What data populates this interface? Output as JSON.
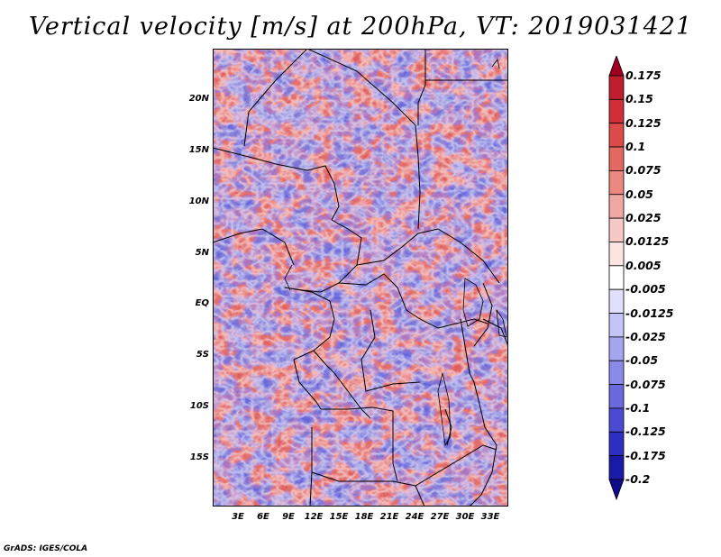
{
  "title": "Vertical velocity [m/s] at 200hPa, VT: 2019031421",
  "map": {
    "lat_labels": [
      "20N",
      "15N",
      "10N",
      "5N",
      "EQ",
      "5S",
      "10S",
      "15S"
    ],
    "lon_labels": [
      "3E",
      "6E",
      "9E",
      "12E",
      "15E",
      "18E",
      "21E",
      "24E",
      "27E",
      "30E",
      "33E"
    ],
    "field": "vertical velocity at 200hPa",
    "lon_range": [
      0,
      35
    ],
    "lat_range": [
      -20,
      25
    ]
  },
  "colorbar": {
    "labels": [
      "0.175",
      "0.15",
      "0.125",
      "0.1",
      "0.075",
      "0.05",
      "0.025",
      "0.0125",
      "0.005",
      "-0.005",
      "-0.0125",
      "-0.025",
      "-0.05",
      "-0.075",
      "-0.1",
      "-0.125",
      "-0.175",
      "-0.2"
    ],
    "colors": [
      "#a00020",
      "#be1e2d",
      "#d02f3a",
      "#dc4a4a",
      "#e46862",
      "#ec8882",
      "#f2a8a2",
      "#f8c8c4",
      "#fce4e2",
      "#ffffff",
      "#e0e0fc",
      "#c4c4f6",
      "#a6a6f0",
      "#8a8ae8",
      "#6a6ade",
      "#4a4ad2",
      "#2e2ec2",
      "#1a1aa8",
      "#0c0c8c"
    ]
  },
  "credit": "GrADS: IGES/COLA"
}
